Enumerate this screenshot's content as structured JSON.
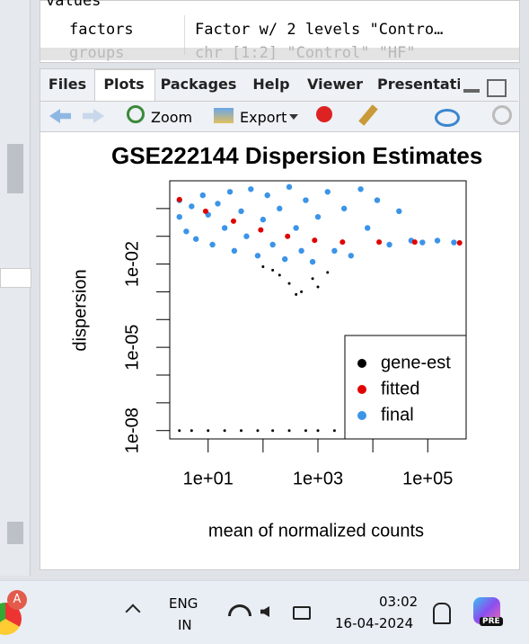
{
  "environment": {
    "header": "values",
    "rows": [
      [
        "factors",
        "Factor w/ 2 levels \"Contro…"
      ],
      [
        "groups",
        "chr [1:2] \"Control\" \"HF\""
      ]
    ]
  },
  "tabs": [
    "Files",
    "Plots",
    "Packages",
    "Help",
    "Viewer",
    "Presentati"
  ],
  "toolbar": {
    "zoom": "Zoom",
    "export": "Export"
  },
  "chart_data": {
    "type": "scatter",
    "title": "GSE222144 Dispersion Estimates",
    "x_label": "mean of normalized counts",
    "y_label": "dispersion",
    "xlog": true,
    "ylog": true,
    "legend": "bottom-right",
    "xlim": [
      2,
      500000
    ],
    "ylim": [
      5e-09,
      10
    ],
    "xticks": [
      {
        "value": 10,
        "label": "1e+01"
      },
      {
        "value": 1000,
        "label": "1e+03"
      },
      {
        "value": 100000,
        "label": "1e+05"
      }
    ],
    "xticks_minor": [
      100,
      10000
    ],
    "yticks": [
      {
        "value": 1e-08,
        "label": "1e-08"
      },
      {
        "value": 1e-05,
        "label": "1e-05"
      },
      {
        "value": 0.01,
        "label": "1e-02"
      }
    ],
    "yticks_minor": [
      1e-07,
      1e-06,
      0.0001,
      0.001,
      0.1,
      1
    ],
    "series": [
      {
        "name": "gene-est",
        "color": "#000000",
        "size": 1.5,
        "x": [
          100,
          150,
          200,
          300,
          400,
          500,
          800,
          1000,
          1500,
          3,
          5,
          10,
          20,
          40,
          80,
          150,
          300,
          600,
          1000,
          2000
        ],
        "values": [
          0.008,
          0.006,
          0.004,
          0.002,
          0.0008,
          0.001,
          0.003,
          0.0015,
          0.005,
          1e-08,
          1e-08,
          1e-08,
          1e-08,
          1e-08,
          1e-08,
          1e-08,
          1e-08,
          1e-08,
          1e-08,
          1e-08
        ]
      },
      {
        "name": "final",
        "color": "#3b94e8",
        "size": 3.2,
        "x": [
          3,
          3,
          4,
          5,
          6,
          8,
          10,
          12,
          15,
          20,
          25,
          30,
          40,
          50,
          60,
          80,
          100,
          120,
          150,
          200,
          250,
          300,
          400,
          500,
          600,
          800,
          1000,
          1500,
          2000,
          3000,
          4000,
          6000,
          8000,
          12000,
          20000,
          30000,
          50000,
          80000,
          150000,
          300000
        ],
        "values": [
          2,
          0.5,
          0.15,
          1.2,
          0.08,
          3,
          0.6,
          0.05,
          1.5,
          0.2,
          4,
          0.03,
          0.8,
          0.1,
          5,
          0.02,
          0.4,
          3,
          0.05,
          1,
          0.015,
          6,
          0.2,
          0.03,
          2,
          0.012,
          0.5,
          4,
          0.03,
          1,
          0.02,
          5,
          0.2,
          2,
          0.05,
          0.8,
          0.07,
          0.06,
          0.07,
          0.06
        ]
      },
      {
        "name": "fitted",
        "color": "#e00000",
        "size": 3,
        "x": [
          3,
          9,
          29,
          91,
          280,
          870,
          2800,
          13000,
          58000,
          380000
        ],
        "values": [
          2.1,
          0.8,
          0.35,
          0.17,
          0.1,
          0.072,
          0.062,
          0.062,
          0.062,
          0.058
        ]
      }
    ],
    "legend_order": [
      "gene-est",
      "fitted",
      "final"
    ]
  },
  "taskbar": {
    "lang": "ENG",
    "region": "IN",
    "time": "03:02",
    "date": "16-04-2024",
    "badge": "PRE"
  }
}
